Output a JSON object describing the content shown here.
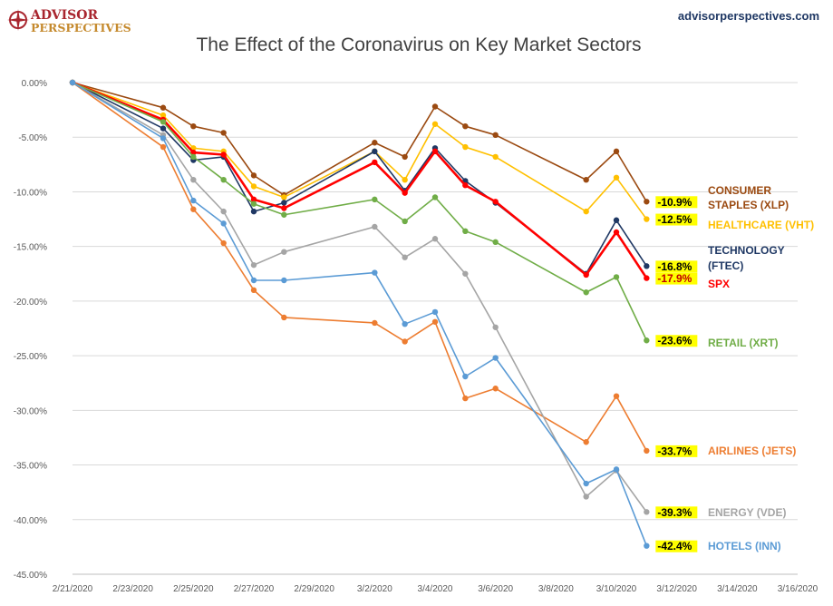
{
  "brand": {
    "logo_line1": "ADVISOR",
    "logo_line2": "PERSPECTIVES",
    "website": "advisorperspectives.com",
    "logo_color_primary": "#a9262f",
    "logo_color_secondary": "#c58a2e"
  },
  "chart_data": {
    "type": "line",
    "title": "The Effect of the Coronavirus on Key Market Sectors",
    "xlabel": "",
    "ylabel": "",
    "x_tick_labels": [
      "2/21/2020",
      "2/23/2020",
      "2/25/2020",
      "2/27/2020",
      "2/29/2020",
      "3/2/2020",
      "3/4/2020",
      "3/6/2020",
      "3/8/2020",
      "3/10/2020",
      "3/12/2020",
      "3/14/2020",
      "3/16/2020"
    ],
    "xlim": [
      "2020-02-21",
      "2020-03-16"
    ],
    "y_tick_labels": [
      "0.00%",
      "-5.00%",
      "-10.00%",
      "-15.00%",
      "-20.00%",
      "-25.00%",
      "-30.00%",
      "-35.00%",
      "-40.00%",
      "-45.00%"
    ],
    "ylim": [
      -45,
      0
    ],
    "y_unit": "%",
    "grid": "horizontal",
    "legend": "right end labels",
    "x": [
      "2020-02-21",
      "2020-02-24",
      "2020-02-25",
      "2020-02-26",
      "2020-02-27",
      "2020-02-28",
      "2020-03-02",
      "2020-03-03",
      "2020-03-04",
      "2020-03-05",
      "2020-03-06",
      "2020-03-09",
      "2020-03-10",
      "2020-03-11"
    ],
    "series": [
      {
        "name_lines": [
          "CONSUMER",
          "STAPLES (XLP)"
        ],
        "end_label": "-10.9%",
        "color": "#9b4a11",
        "values": [
          0,
          -2.3,
          -4.0,
          -4.6,
          -8.5,
          -10.3,
          -5.5,
          -6.8,
          -2.2,
          -4.0,
          -4.8,
          -8.9,
          -6.3,
          -10.9
        ]
      },
      {
        "name_lines": [
          "HEALTHCARE (VHT)"
        ],
        "end_label": "-12.5%",
        "color": "#ffc000",
        "values": [
          0,
          -3.0,
          -6.0,
          -6.3,
          -9.5,
          -10.5,
          -6.3,
          -8.9,
          -3.8,
          -5.9,
          -6.8,
          -11.8,
          -8.7,
          -12.5
        ]
      },
      {
        "name_lines": [
          "TECHNOLOGY",
          "(FTEC)"
        ],
        "end_label": "-16.8%",
        "color": "#1f3864",
        "values": [
          0,
          -4.2,
          -7.1,
          -6.8,
          -11.8,
          -11.0,
          -6.3,
          -9.9,
          -6.0,
          -9.0,
          -11.0,
          -17.5,
          -12.6,
          -16.8
        ]
      },
      {
        "name_lines": [
          "SPX"
        ],
        "end_label": "-17.9%",
        "color": "#ff0000",
        "values": [
          0,
          -3.4,
          -6.4,
          -6.6,
          -10.7,
          -11.5,
          -7.3,
          -10.1,
          -6.3,
          -9.4,
          -10.9,
          -17.6,
          -13.7,
          -17.9
        ]
      },
      {
        "name_lines": [
          "RETAIL (XRT)"
        ],
        "end_label": "-23.6%",
        "color": "#70ad47",
        "values": [
          0,
          -3.6,
          -6.8,
          -8.9,
          -11.1,
          -12.1,
          -10.7,
          -12.7,
          -10.5,
          -13.6,
          -14.6,
          -19.2,
          -17.8,
          -23.6
        ]
      },
      {
        "name_lines": [
          "AIRLINES (JETS)"
        ],
        "end_label": "-33.7%",
        "color": "#ed7d31",
        "values": [
          0,
          -5.9,
          -11.6,
          -14.7,
          -19.0,
          -21.5,
          -22.0,
          -23.7,
          -21.9,
          -28.9,
          -28.0,
          -32.9,
          -28.7,
          -33.7
        ]
      },
      {
        "name_lines": [
          "ENERGY (VDE)"
        ],
        "end_label": "-39.3%",
        "color": "#a5a5a5",
        "values": [
          0,
          -4.8,
          -8.9,
          -11.8,
          -16.7,
          -15.5,
          -13.2,
          -16.0,
          -14.3,
          -17.5,
          -22.4,
          -37.9,
          -35.5,
          -39.3
        ]
      },
      {
        "name_lines": [
          "HOTELS (INN)"
        ],
        "end_label": "-42.4%",
        "color": "#5b9bd5",
        "values": [
          0,
          -5.1,
          -10.8,
          -12.9,
          -18.1,
          -18.1,
          -17.4,
          -22.1,
          -21.0,
          -26.9,
          -25.2,
          -36.7,
          -35.4,
          -42.4
        ]
      }
    ]
  }
}
